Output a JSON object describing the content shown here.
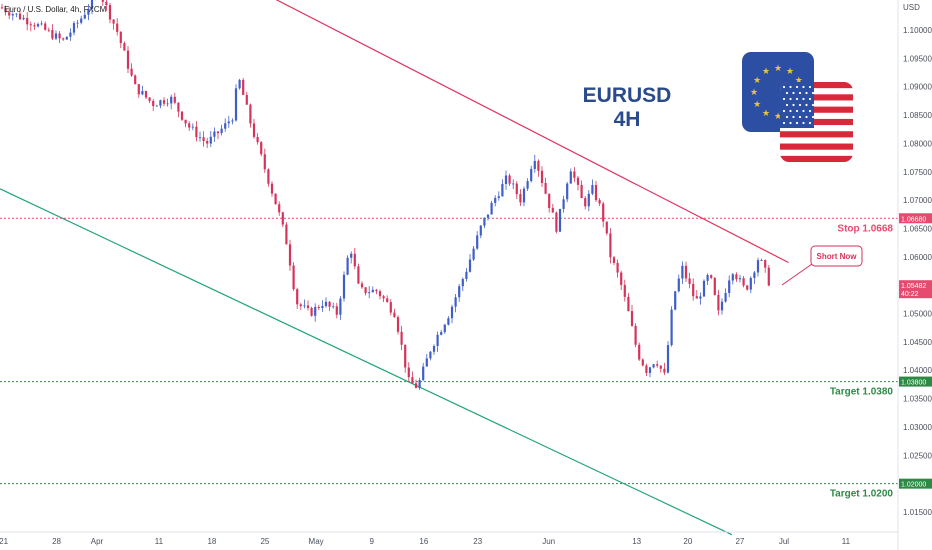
{
  "header": {
    "symbol": "Euro / U.S. Dollar, 4h, FXCM"
  },
  "chart_data": {
    "type": "candlestick",
    "title": "EURUSD",
    "subtitle": "4H",
    "y_axis_unit": "USD",
    "ylim": [
      1.011,
      1.108
    ],
    "y_ticks": [
      "1.10000",
      "1.09500",
      "1.09000",
      "1.08500",
      "1.08000",
      "1.07500",
      "1.07000",
      "1.06500",
      "1.06000",
      "1.05500",
      "1.05000",
      "1.04500",
      "1.04000",
      "1.03500",
      "1.03000",
      "1.02500",
      "1.02000",
      "1.01500"
    ],
    "x_ticks": [
      {
        "label": "21",
        "pos": 0.004
      },
      {
        "label": "28",
        "pos": 0.063
      },
      {
        "label": "Apr",
        "pos": 0.108
      },
      {
        "label": "11",
        "pos": 0.177
      },
      {
        "label": "18",
        "pos": 0.236
      },
      {
        "label": "25",
        "pos": 0.295
      },
      {
        "label": "May",
        "pos": 0.352
      },
      {
        "label": "9",
        "pos": 0.414
      },
      {
        "label": "16",
        "pos": 0.472
      },
      {
        "label": "23",
        "pos": 0.532
      },
      {
        "label": "Jun",
        "pos": 0.611
      },
      {
        "label": "13",
        "pos": 0.709
      },
      {
        "label": "20",
        "pos": 0.766
      },
      {
        "label": "27",
        "pos": 0.824
      },
      {
        "label": "Jul",
        "pos": 0.873
      },
      {
        "label": "11",
        "pos": 0.942
      }
    ],
    "price_path": [
      [
        0,
        1.104
      ],
      [
        0.04,
        1.101
      ],
      [
        0.07,
        1.098
      ],
      [
        0.09,
        1.102
      ],
      [
        0.11,
        1.107
      ],
      [
        0.13,
        1.1
      ],
      [
        0.15,
        1.09
      ],
      [
        0.17,
        1.087
      ],
      [
        0.19,
        1.088
      ],
      [
        0.21,
        1.083
      ],
      [
        0.23,
        1.08
      ],
      [
        0.25,
        1.083
      ],
      [
        0.26,
        1.085
      ],
      [
        0.265,
        1.092
      ],
      [
        0.28,
        1.083
      ],
      [
        0.29,
        1.078
      ],
      [
        0.31,
        1.068
      ],
      [
        0.32,
        1.062
      ],
      [
        0.33,
        1.052
      ],
      [
        0.345,
        1.05
      ],
      [
        0.36,
        1.052
      ],
      [
        0.375,
        1.05
      ],
      [
        0.39,
        1.062
      ],
      [
        0.4,
        1.054
      ],
      [
        0.42,
        1.054
      ],
      [
        0.44,
        1.05
      ],
      [
        0.455,
        1.038
      ],
      [
        0.465,
        1.037
      ],
      [
        0.48,
        1.044
      ],
      [
        0.5,
        1.05
      ],
      [
        0.52,
        1.058
      ],
      [
        0.535,
        1.065
      ],
      [
        0.55,
        1.07
      ],
      [
        0.565,
        1.074
      ],
      [
        0.58,
        1.07
      ],
      [
        0.595,
        1.078
      ],
      [
        0.61,
        1.07
      ],
      [
        0.62,
        1.065
      ],
      [
        0.635,
        1.076
      ],
      [
        0.65,
        1.069
      ],
      [
        0.66,
        1.072
      ],
      [
        0.67,
        1.068
      ],
      [
        0.68,
        1.06
      ],
      [
        0.69,
        1.056
      ],
      [
        0.7,
        1.05
      ],
      [
        0.71,
        1.043
      ],
      [
        0.72,
        1.04
      ],
      [
        0.73,
        1.042
      ],
      [
        0.74,
        1.039
      ],
      [
        0.75,
        1.053
      ],
      [
        0.76,
        1.058
      ],
      [
        0.775,
        1.052
      ],
      [
        0.79,
        1.057
      ],
      [
        0.8,
        1.05
      ],
      [
        0.815,
        1.058
      ],
      [
        0.83,
        1.054
      ],
      [
        0.845,
        1.06
      ],
      [
        0.853,
        1.057
      ],
      [
        0.858,
        1.0548
      ]
    ],
    "levels": [
      {
        "name": "Stop",
        "value": 1.0668,
        "label": "Stop 1.0668",
        "tag": "1.06680",
        "color": "#e64a6e",
        "style": "dotted"
      },
      {
        "name": "Target",
        "value": 1.038,
        "label": "Target 1.0380",
        "tag": "1.03800",
        "color": "#2c8a45",
        "style": "dotted"
      },
      {
        "name": "Target",
        "value": 1.02,
        "label": "Target 1.0200",
        "tag": "1.02000",
        "color": "#2c8a45",
        "style": "dotted"
      }
    ],
    "last_price": {
      "value": 1.05482,
      "tag": "1.05482",
      "countdown": "40:22",
      "color": "#e64a6e"
    },
    "trendlines": [
      {
        "name": "upper-resistance",
        "color": "#e0335e",
        "from": [
          0.275,
          1.108
        ],
        "to": [
          0.878,
          1.059
        ]
      },
      {
        "name": "lower-channel",
        "color": "#22a37a",
        "from": [
          0.0,
          1.072
        ],
        "to": [
          0.815,
          1.011
        ]
      }
    ],
    "callout": {
      "text": "Short Now",
      "color": "#d6335a"
    },
    "colors": {
      "up": "#3f5fc8",
      "down": "#d6335a",
      "stop": "#e64a6e",
      "target": "#2c8a45"
    }
  }
}
